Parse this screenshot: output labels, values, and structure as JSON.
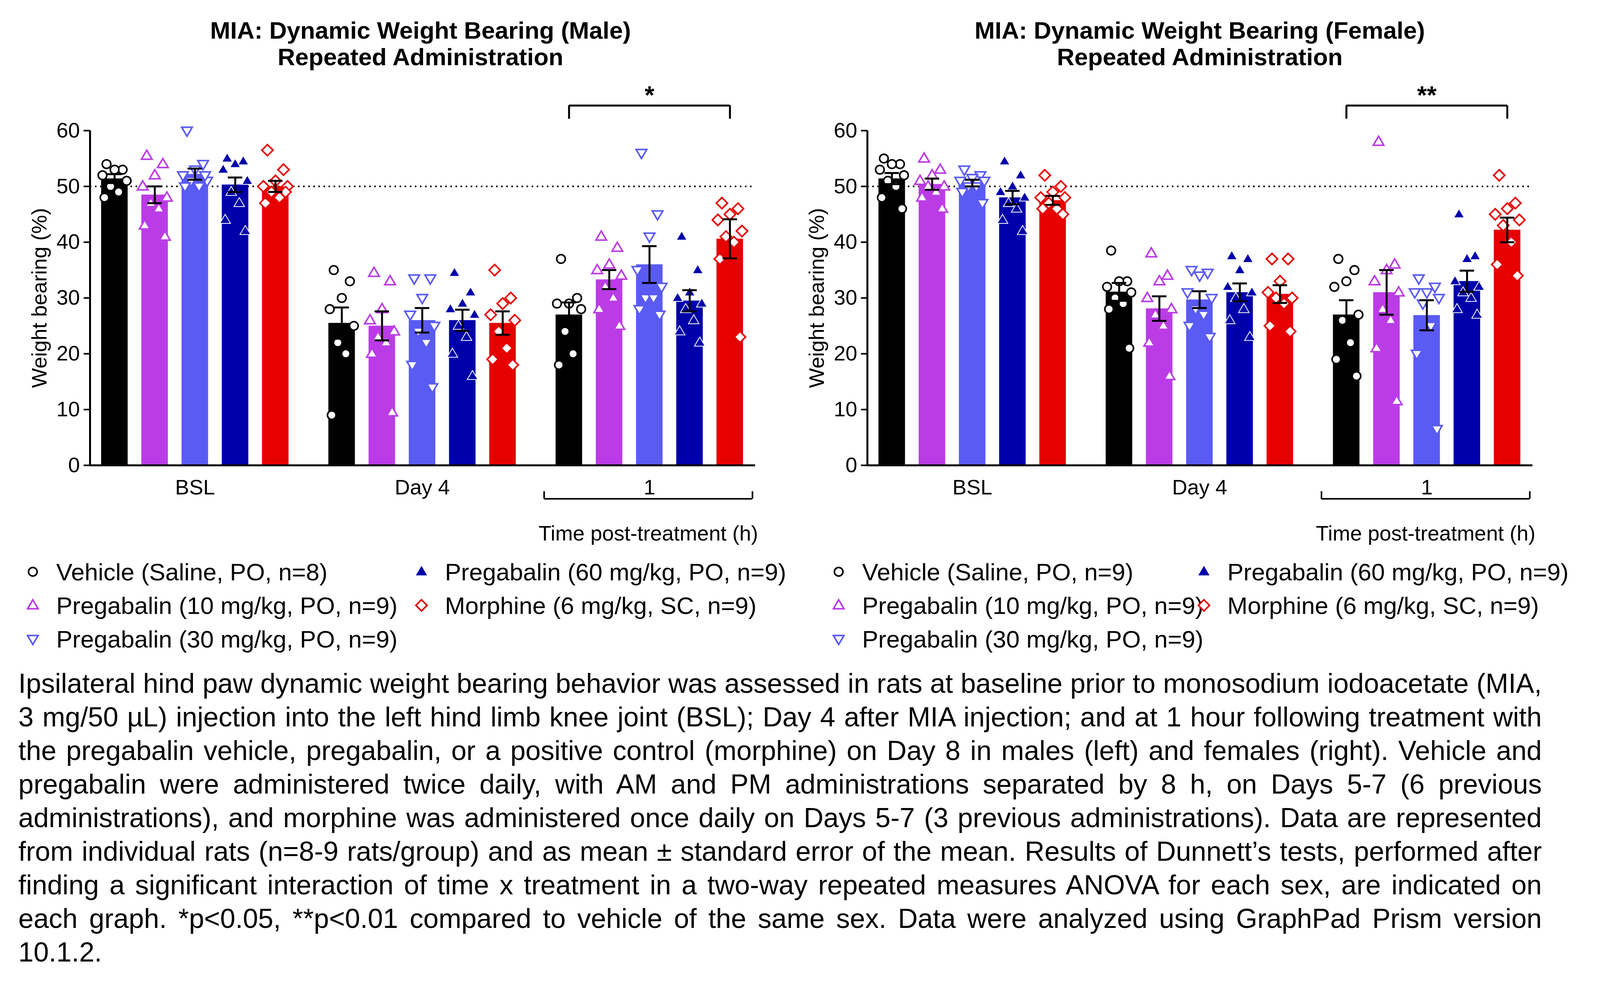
{
  "chart_data": [
    {
      "type": "bar",
      "title": "MIA: Dynamic Weight Bearing (Male)",
      "subtitle": "Repeated Administration",
      "y_label": "Weight bearing (%)",
      "x_label": {
        "text": "Time post-treatment (h)",
        "categories": [
          "1"
        ]
      },
      "categories": [
        "BSL",
        "Day 4",
        "1"
      ],
      "ylim": [
        0,
        60
      ],
      "yticks": [
        0,
        10,
        20,
        30,
        40,
        50,
        60
      ],
      "reference_line": 50,
      "series": [
        {
          "name": "Vehicle (Saline, PO, n=8)",
          "color": "#000000",
          "marker": "open-circle",
          "values": [
            51.4,
            25.5,
            27.0
          ],
          "sem": [
            0.8,
            2.8,
            2.2
          ],
          "points": [
            [
              54,
              53,
              53,
              52,
              51,
              50,
              49,
              48
            ],
            [
              35,
              33,
              30,
              28,
              25,
              22,
              20,
              9
            ],
            [
              37,
              30,
              29,
              29,
              28,
              24,
              20,
              18
            ]
          ]
        },
        {
          "name": "Pregabalin (10 mg/kg, PO, n=9)",
          "color": "#bb3ce6",
          "marker": "open-triangle",
          "values": [
            48.5,
            25.0,
            33.3
          ],
          "sem": [
            1.5,
            2.6,
            1.7
          ],
          "points": [
            [
              55.5,
              54,
              52,
              50,
              48,
              47,
              46,
              43,
              41
            ],
            [
              34.5,
              33,
              28,
              26,
              24,
              23,
              22,
              20,
              9.5
            ],
            [
              41,
              39,
              36,
              35,
              34,
              32,
              30,
              28,
              25
            ]
          ]
        },
        {
          "name": "Pregabalin (30 mg/kg, PO, n=9)",
          "color": "#5a5af5",
          "marker": "open-triangle-down",
          "values": [
            52.2,
            26.0,
            36.0
          ],
          "sem": [
            1.0,
            2.2,
            3.3
          ],
          "points": [
            [
              60,
              54,
              53,
              52,
              51,
              51,
              50,
              50,
              52
            ],
            [
              33.5,
              33.5,
              30,
              27,
              25,
              24,
              22,
              18,
              14
            ],
            [
              56,
              45,
              41,
              35,
              32,
              30,
              30,
              28,
              27
            ]
          ]
        },
        {
          "name": "Pregabalin (60 mg/kg, PO, n=9)",
          "color": "#0000aa",
          "marker": "filled-triangle",
          "values": [
            50.3,
            26.0,
            29.5
          ],
          "sem": [
            1.3,
            1.9,
            1.9
          ],
          "points": [
            [
              55,
              54.5,
              54,
              53,
              51,
              49,
              47,
              44,
              42
            ],
            [
              34.5,
              31,
              29,
              28,
              27,
              25,
              23,
              20,
              16
            ],
            [
              41,
              35,
              31,
              30,
              29,
              28,
              26,
              24,
              22
            ]
          ]
        },
        {
          "name": "Morphine (6 mg/kg, SC, n=9)",
          "color": "#e60000",
          "marker": "open-diamond",
          "values": [
            50.0,
            25.5,
            40.6
          ],
          "sem": [
            1.0,
            2.1,
            3.5
          ],
          "points": [
            [
              56.5,
              53,
              51,
              50,
              50,
              49,
              48,
              47,
              49
            ],
            [
              35,
              30,
              29,
              27,
              26,
              24,
              21,
              19,
              18
            ],
            [
              47,
              46,
              45,
              44,
              42,
              41,
              40,
              37,
              23
            ]
          ]
        }
      ],
      "annotations": [
        {
          "text": "*",
          "category": "1",
          "from": "Vehicle (Saline, PO, n=8)",
          "to": "Morphine (6 mg/kg, SC, n=9)"
        }
      ]
    },
    {
      "type": "bar",
      "title": "MIA: Dynamic Weight Bearing (Female)",
      "subtitle": "Repeated Administration",
      "y_label": "Weight bearing (%)",
      "x_label": {
        "text": "Time post-treatment (h)",
        "categories": [
          "1"
        ]
      },
      "categories": [
        "BSL",
        "Day 4",
        "1"
      ],
      "ylim": [
        0,
        60
      ],
      "yticks": [
        0,
        10,
        20,
        30,
        40,
        50,
        60
      ],
      "reference_line": 50,
      "series": [
        {
          "name": "Vehicle (Saline, PO, n=9)",
          "color": "#000000",
          "marker": "open-circle",
          "values": [
            51.4,
            31.1,
            27.0
          ],
          "sem": [
            1.0,
            1.6,
            2.6
          ],
          "points": [
            [
              55,
              54,
              54,
              53,
              52,
              51,
              50,
              48,
              46
            ],
            [
              38.5,
              33,
              33,
              32,
              31,
              30,
              29,
              28,
              21
            ],
            [
              37,
              35,
              33,
              32,
              27,
              26,
              22,
              19,
              16
            ]
          ]
        },
        {
          "name": "Pregabalin (10 mg/kg, PO, n=9)",
          "color": "#bb3ce6",
          "marker": "open-triangle",
          "values": [
            50.4,
            28.1,
            31.0
          ],
          "sem": [
            1.0,
            2.2,
            4.0
          ],
          "points": [
            [
              55,
              53,
              52,
              51,
              50,
              50,
              49,
              48,
              46
            ],
            [
              38,
              34,
              33,
              30,
              28,
              27,
              25,
              22,
              16
            ],
            [
              58,
              36,
              35,
              33,
              31,
              28,
              26,
              21,
              11.5
            ]
          ]
        },
        {
          "name": "Pregabalin (30 mg/kg, PO, n=9)",
          "color": "#5a5af5",
          "marker": "open-triangle-down",
          "values": [
            50.6,
            29.7,
            26.9
          ],
          "sem": [
            0.6,
            1.5,
            2.7
          ],
          "points": [
            [
              53,
              52,
              51.5,
              51,
              51,
              50,
              50,
              49,
              47
            ],
            [
              35,
              34.5,
              34,
              31,
              30,
              28,
              27,
              25,
              23
            ],
            [
              33.5,
              32,
              31,
              31,
              30,
              29,
              25,
              20,
              6.5
            ]
          ]
        },
        {
          "name": "Pregabalin (60 mg/kg, PO, n=9)",
          "color": "#0000aa",
          "marker": "filled-triangle",
          "values": [
            48.0,
            31.0,
            33.0
          ],
          "sem": [
            1.2,
            1.6,
            1.9
          ],
          "points": [
            [
              54.5,
              52,
              50,
              49,
              48,
              47,
              46,
              44,
              42
            ],
            [
              37.5,
              37,
              35,
              32,
              31,
              30,
              28,
              26,
              23
            ],
            [
              45,
              37.5,
              37,
              33,
              32,
              31,
              30,
              28,
              27
            ]
          ]
        },
        {
          "name": "Morphine (6 mg/kg, SC, n=9)",
          "color": "#e60000",
          "marker": "open-diamond",
          "values": [
            47.5,
            30.7,
            42.2
          ],
          "sem": [
            0.8,
            1.6,
            2.2
          ],
          "points": [
            [
              52,
              50,
              49,
              48,
              48,
              47,
              46,
              46,
              45
            ],
            [
              37,
              37,
              33,
              31,
              30,
              30,
              29,
              25,
              24
            ],
            [
              52,
              47,
              46,
              45,
              44,
              43,
              40,
              36,
              34
            ]
          ]
        }
      ],
      "annotations": [
        {
          "text": "**",
          "category": "1",
          "from": "Vehicle (Saline, PO, n=9)",
          "to": "Morphine (6 mg/kg, SC, n=9)"
        }
      ]
    }
  ],
  "caption": "Ipsilateral hind paw dynamic weight bearing behavior was assessed in rats at baseline prior to monosodium iodoacetate (MIA, 3 mg/50 µL) injection into the left hind limb knee joint (BSL); Day 4 after MIA injection; and at 1 hour following treatment with the pregabalin vehicle, pregabalin, or a positive control (morphine) on Day 8 in males (left) and females (right). Vehicle and pregabalin were administered twice daily, with AM and PM administrations separated by 8 h, on Days 5-7 (6 previous administrations), and morphine was administered once daily on Days 5-7 (3 previous administrations). Data are represented from individual rats (n=8-9 rats/group) and as mean ± standard error of the mean. Results of Dunnett’s tests, performed after finding a significant interaction of time x treatment in a two-way repeated measures ANOVA for each sex, are indicated on each graph. *p<0.05, **p<0.01 compared to vehicle of the same sex. Data were analyzed using GraphPad Prism version 10.1.2."
}
